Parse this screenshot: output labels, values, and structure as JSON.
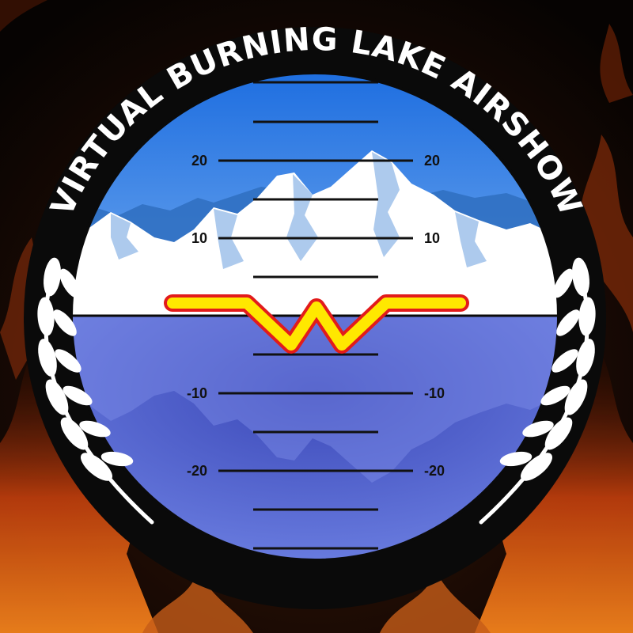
{
  "title": "VIRTUAL BURNING LAKE AIRSHOW",
  "emblem": "W",
  "pitch_ladder": {
    "labeled_marks": [
      {
        "value": 20,
        "left": "20",
        "right": "20"
      },
      {
        "value": 10,
        "left": "10",
        "right": "10"
      },
      {
        "value": -10,
        "left": "-10",
        "right": "-10"
      },
      {
        "value": -20,
        "left": "-20",
        "right": "-20"
      }
    ]
  },
  "colors": {
    "sky": "#3f86e6",
    "lake": "#4c63cc",
    "snow": "#ffffff",
    "ring": "#0a0a0a",
    "emblem_fill": "#ffe800",
    "emblem_outline": "#e21b1b",
    "fire": "#e0581a"
  },
  "icons": {
    "left_wreath": "laurel-branch-icon",
    "right_wreath": "laurel-branch-icon"
  }
}
